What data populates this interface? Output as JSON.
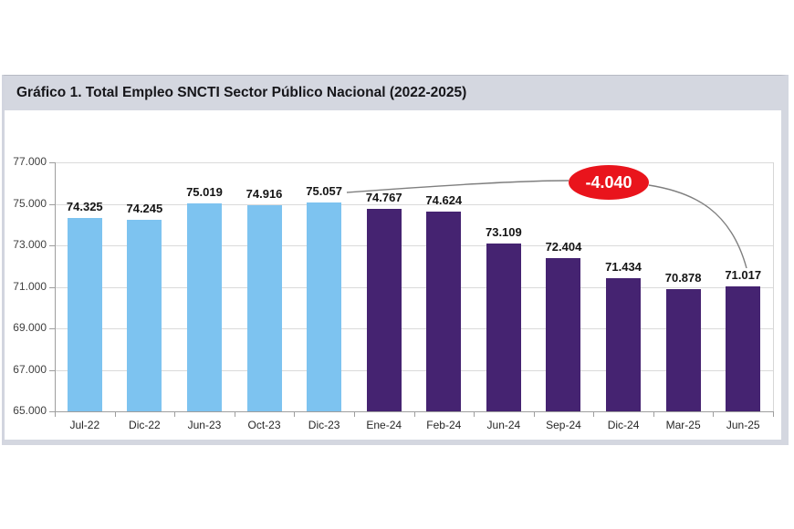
{
  "window": {
    "title_bar": "Gráfico 1. Total Empleo SNCTI Sector Público Nacional (2022-2025)"
  },
  "theme": {
    "title_bar_bg": "#d4d7e0",
    "panel_border": "#b7bac4",
    "bar_color_2022_2023": "#7dc3f0",
    "bar_color_2024_2025": "#452371",
    "annotation_red": "#e9141c",
    "gridline": "#dadada",
    "axis": "#9e9e9e"
  },
  "chart_data": {
    "type": "bar",
    "title": "Gráfico 1. Total Empleo SNCTI Sector Público Nacional (2022-2025)",
    "categories": [
      "Jul-22",
      "Dic-22",
      "Jun-23",
      "Oct-23",
      "Dic-23",
      "Ene-24",
      "Feb-24",
      "Jun-24",
      "Sep-24",
      "Dic-24",
      "Mar-25",
      "Jun-25"
    ],
    "values": [
      74325,
      74245,
      75019,
      74916,
      75057,
      74767,
      74624,
      73109,
      72404,
      71434,
      70878,
      71017
    ],
    "value_labels": [
      "74.325",
      "74.245",
      "75.019",
      "74.916",
      "75.057",
      "74.767",
      "74.624",
      "73.109",
      "72.404",
      "71.434",
      "70.878",
      "71.017"
    ],
    "series_color_split": {
      "index": 5,
      "before": "#7dc3f0",
      "after": "#452371"
    },
    "xlabel": "",
    "ylabel": "",
    "ylim": [
      65000,
      77000
    ],
    "yticks": [
      77000,
      75000,
      73000,
      71000,
      69000,
      67000,
      65000
    ],
    "ytick_labels": [
      "77.000",
      "75.000",
      "73.000",
      "71.000",
      "69.000",
      "67.000",
      "65.000"
    ],
    "grid": true,
    "legend": false,
    "annotation": {
      "text": "-4.040",
      "from_category": "Dic-23",
      "to_category": "Jun-25"
    }
  }
}
